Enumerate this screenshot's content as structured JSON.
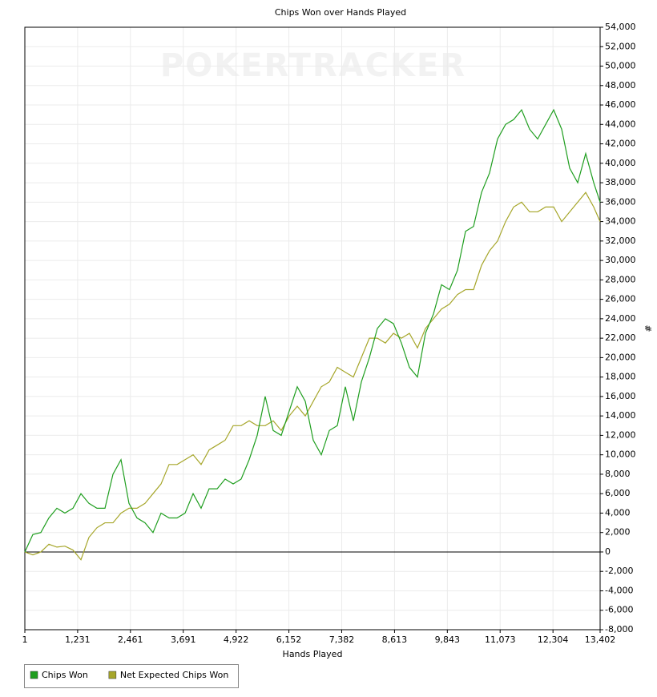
{
  "chart_data": {
    "type": "line",
    "title": "Chips Won over Hands Played",
    "watermark": "POKERTRACKER",
    "x_label": "Hands Played",
    "y_label": "#",
    "y_axis_side": "right",
    "grid": true,
    "legend": "bottom-left",
    "x": [
      1,
      188,
      374,
      561,
      748,
      934,
      1121,
      1308,
      1494,
      1681,
      1868,
      2054,
      2241,
      2427,
      2614,
      2801,
      2987,
      3174,
      3361,
      3547,
      3734,
      3921,
      4107,
      4294,
      4481,
      4667,
      4854,
      5040,
      5227,
      5414,
      5600,
      5787,
      5974,
      6160,
      6347,
      6534,
      6720,
      6907,
      7094,
      7280,
      7467,
      7654,
      7840,
      8027,
      8213,
      8400,
      8587,
      8773,
      8960,
      9147,
      9333,
      9520,
      9707,
      9893,
      10080,
      10267,
      10453,
      10640,
      10826,
      11013,
      11200,
      11387,
      11573,
      11760,
      11947,
      12133,
      12320,
      12507,
      12693,
      12880,
      13066,
      13253,
      13402
    ],
    "series": [
      {
        "name": "Chips Won",
        "color": "#1f9e1f",
        "values": [
          0,
          1800,
          2000,
          3500,
          4500,
          4000,
          4500,
          6000,
          5000,
          4500,
          4500,
          8000,
          9500,
          5000,
          3500,
          3000,
          2000,
          4000,
          3500,
          3500,
          4000,
          6000,
          4500,
          6500,
          6500,
          7500,
          7000,
          7500,
          9500,
          12000,
          16000,
          12500,
          12000,
          14500,
          17000,
          15500,
          11500,
          10000,
          12500,
          13000,
          17000,
          13500,
          17500,
          20000,
          23000,
          24000,
          23500,
          21500,
          19000,
          18000,
          22500,
          24500,
          27500,
          27000,
          29000,
          33000,
          33500,
          37000,
          39000,
          42500,
          44000,
          44500,
          45500,
          43500,
          42500,
          44000,
          45500,
          43500,
          39500,
          38000,
          41000,
          38000,
          36000
        ]
      },
      {
        "name": "Net Expected Chips Won",
        "color": "#a6a62a",
        "values": [
          0,
          -300,
          0,
          800,
          500,
          600,
          200,
          -800,
          1500,
          2500,
          3000,
          3000,
          4000,
          4500,
          4500,
          5000,
          6000,
          7000,
          9000,
          9000,
          9500,
          10000,
          9000,
          10500,
          11000,
          11500,
          13000,
          13000,
          13500,
          13000,
          13000,
          13500,
          12500,
          14000,
          15000,
          14000,
          15500,
          17000,
          17500,
          19000,
          18500,
          18000,
          20000,
          22000,
          22000,
          21500,
          22500,
          22000,
          22500,
          21000,
          23000,
          24000,
          25000,
          25500,
          26500,
          27000,
          27000,
          29500,
          31000,
          32000,
          34000,
          35500,
          36000,
          35000,
          35000,
          35500,
          35500,
          34000,
          35000,
          36000,
          37000,
          35500,
          34000
        ]
      }
    ],
    "xlim": [
      1,
      13402
    ],
    "xticks": [
      1,
      {
        "value": 1231,
        "label": "1,231"
      },
      {
        "value": 2461,
        "label": "2,461"
      },
      {
        "value": 3691,
        "label": "3,691"
      },
      {
        "value": 4922,
        "label": "4,922"
      },
      {
        "value": 6152,
        "label": "6,152"
      },
      {
        "value": 7382,
        "label": "7,382"
      },
      {
        "value": 8613,
        "label": "8,613"
      },
      {
        "value": 9843,
        "label": "9,843"
      },
      {
        "value": 11073,
        "label": "11,073"
      },
      {
        "value": 12304,
        "label": "12,304"
      },
      {
        "value": 13402,
        "label": "13,402"
      }
    ],
    "ylim": [
      -8000,
      54000
    ],
    "yticks": [
      {
        "value": -8000,
        "label": "-8,000"
      },
      {
        "value": -6000,
        "label": "-6,000"
      },
      {
        "value": -4000,
        "label": "-4,000"
      },
      {
        "value": -2000,
        "label": "-2,000"
      },
      0,
      {
        "value": 2000,
        "label": "2,000"
      },
      {
        "value": 4000,
        "label": "4,000"
      },
      {
        "value": 6000,
        "label": "6,000"
      },
      {
        "value": 8000,
        "label": "8,000"
      },
      {
        "value": 10000,
        "label": "10,000"
      },
      {
        "value": 12000,
        "label": "12,000"
      },
      {
        "value": 14000,
        "label": "14,000"
      },
      {
        "value": 16000,
        "label": "16,000"
      },
      {
        "value": 18000,
        "label": "18,000"
      },
      {
        "value": 20000,
        "label": "20,000"
      },
      {
        "value": 22000,
        "label": "22,000"
      },
      {
        "value": 24000,
        "label": "24,000"
      },
      {
        "value": 26000,
        "label": "26,000"
      },
      {
        "value": 28000,
        "label": "28,000"
      },
      {
        "value": 30000,
        "label": "30,000"
      },
      {
        "value": 32000,
        "label": "32,000"
      },
      {
        "value": 34000,
        "label": "34,000"
      },
      {
        "value": 36000,
        "label": "36,000"
      },
      {
        "value": 38000,
        "label": "38,000"
      },
      {
        "value": 40000,
        "label": "40,000"
      },
      {
        "value": 42000,
        "label": "42,000"
      },
      {
        "value": 44000,
        "label": "44,000"
      },
      {
        "value": 46000,
        "label": "46,000"
      },
      {
        "value": 48000,
        "label": "48,000"
      },
      {
        "value": 50000,
        "label": "50,000"
      },
      {
        "value": 52000,
        "label": "52,000"
      },
      {
        "value": 54000,
        "label": "54,000"
      }
    ]
  }
}
